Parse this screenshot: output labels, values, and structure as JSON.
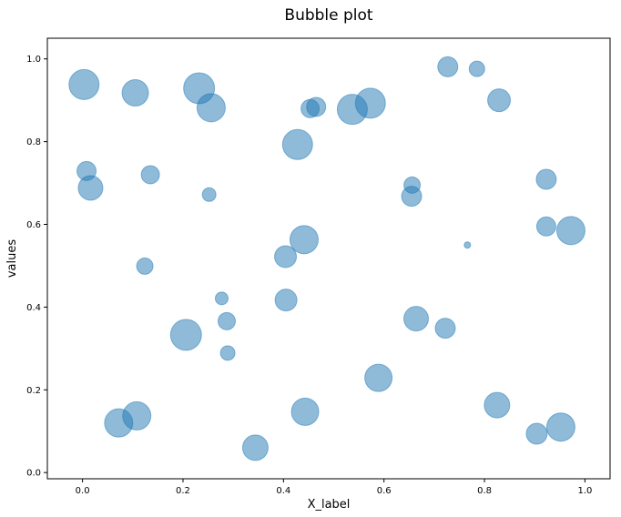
{
  "chart_data": {
    "type": "scatter",
    "title": "Bubble plot",
    "xlabel": "X_label",
    "ylabel": "values",
    "xlim": [
      -0.07,
      1.05
    ],
    "ylim": [
      -0.015,
      1.05
    ],
    "xticks": [
      "0.0",
      "0.2",
      "0.4",
      "0.6",
      "0.8",
      "1.0"
    ],
    "yticks": [
      "0.0",
      "0.2",
      "0.4",
      "0.6",
      "0.8",
      "1.0"
    ],
    "grid": false,
    "marker_color": "#1f77b4",
    "marker_alpha": 0.5,
    "points": [
      {
        "x": 0.003,
        "y": 0.938,
        "size": 16.5
      },
      {
        "x": 0.105,
        "y": 0.918,
        "size": 14.5
      },
      {
        "x": 0.232,
        "y": 0.929,
        "size": 17.0
      },
      {
        "x": 0.256,
        "y": 0.882,
        "size": 15.5
      },
      {
        "x": 0.453,
        "y": 0.88,
        "size": 10.0
      },
      {
        "x": 0.465,
        "y": 0.884,
        "size": 10.5
      },
      {
        "x": 0.537,
        "y": 0.878,
        "size": 16.5
      },
      {
        "x": 0.573,
        "y": 0.893,
        "size": 16.5
      },
      {
        "x": 0.727,
        "y": 0.981,
        "size": 11.0
      },
      {
        "x": 0.785,
        "y": 0.976,
        "size": 8.5
      },
      {
        "x": 0.829,
        "y": 0.9,
        "size": 12.5
      },
      {
        "x": 0.428,
        "y": 0.793,
        "size": 16.5
      },
      {
        "x": 0.008,
        "y": 0.729,
        "size": 10.5
      },
      {
        "x": 0.016,
        "y": 0.688,
        "size": 13.5
      },
      {
        "x": 0.135,
        "y": 0.72,
        "size": 10.0
      },
      {
        "x": 0.252,
        "y": 0.672,
        "size": 7.5
      },
      {
        "x": 0.656,
        "y": 0.695,
        "size": 9.0
      },
      {
        "x": 0.655,
        "y": 0.668,
        "size": 11.0
      },
      {
        "x": 0.923,
        "y": 0.709,
        "size": 11.0
      },
      {
        "x": 0.923,
        "y": 0.595,
        "size": 10.5
      },
      {
        "x": 0.972,
        "y": 0.585,
        "size": 15.5
      },
      {
        "x": 0.441,
        "y": 0.563,
        "size": 15.5
      },
      {
        "x": 0.404,
        "y": 0.522,
        "size": 12.0
      },
      {
        "x": 0.124,
        "y": 0.499,
        "size": 9.0
      },
      {
        "x": 0.766,
        "y": 0.55,
        "size": 3.5
      },
      {
        "x": 0.277,
        "y": 0.421,
        "size": 7.0
      },
      {
        "x": 0.405,
        "y": 0.417,
        "size": 12.0
      },
      {
        "x": 0.664,
        "y": 0.372,
        "size": 13.5
      },
      {
        "x": 0.722,
        "y": 0.349,
        "size": 11.0
      },
      {
        "x": 0.287,
        "y": 0.366,
        "size": 9.5
      },
      {
        "x": 0.206,
        "y": 0.333,
        "size": 17.0
      },
      {
        "x": 0.289,
        "y": 0.289,
        "size": 8.0
      },
      {
        "x": 0.589,
        "y": 0.229,
        "size": 15.0
      },
      {
        "x": 0.825,
        "y": 0.163,
        "size": 14.0
      },
      {
        "x": 0.443,
        "y": 0.147,
        "size": 15.0
      },
      {
        "x": 0.108,
        "y": 0.137,
        "size": 15.5
      },
      {
        "x": 0.072,
        "y": 0.12,
        "size": 15.5
      },
      {
        "x": 0.952,
        "y": 0.11,
        "size": 15.5
      },
      {
        "x": 0.904,
        "y": 0.094,
        "size": 11.5
      },
      {
        "x": 0.344,
        "y": 0.06,
        "size": 14.0
      }
    ]
  }
}
